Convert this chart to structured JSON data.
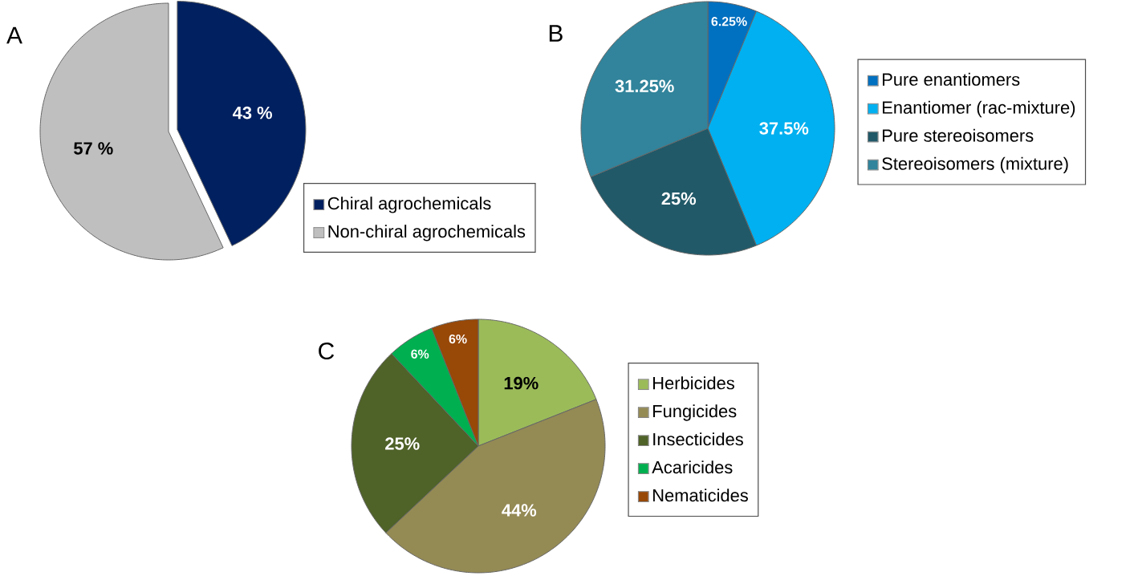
{
  "chart_data": [
    {
      "type": "pie",
      "title": "A",
      "categories": [
        "Chiral agrochemicals",
        "Non-chiral agrochemicals"
      ],
      "values": [
        43,
        57
      ],
      "colors": [
        "#002060",
        "#bfbfbf"
      ],
      "value_labels": [
        "43 %",
        "57 %"
      ],
      "legend": "bottom right"
    },
    {
      "type": "pie",
      "title": "B",
      "categories": [
        "Pure enantiomers",
        "Enantiomer (rac-mixture)",
        "Pure stereoisomers",
        "Stereoisomers (mixture)"
      ],
      "values": [
        6.25,
        37.5,
        25,
        31.25
      ],
      "colors": [
        "#0070c0",
        "#00b0f0",
        "#215968",
        "#31849b"
      ],
      "value_labels": [
        "6.25%",
        "37.5%",
        "25%",
        "31.25%"
      ],
      "legend": "right"
    },
    {
      "type": "pie",
      "title": "C",
      "categories": [
        "Herbicides",
        "Fungicides",
        "Insecticides",
        "Acaricides",
        "Nematicides"
      ],
      "values": [
        19,
        44,
        25,
        6,
        6
      ],
      "colors": [
        "#9bbb59",
        "#948a54",
        "#4f6228",
        "#00b050",
        "#984807"
      ],
      "value_labels": [
        "19%",
        "44%",
        "25%",
        "6%",
        "6%"
      ],
      "legend": "right"
    }
  ]
}
